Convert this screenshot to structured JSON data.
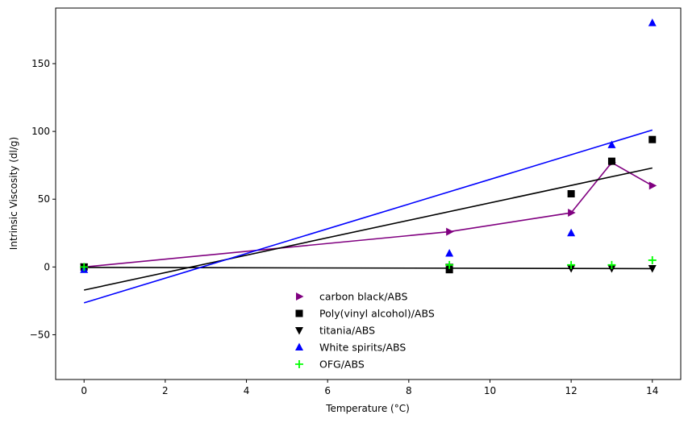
{
  "chart_data": {
    "type": "scatter",
    "title": "",
    "xlabel": "Temperature (°C)",
    "ylabel": "Intrinsic Viscosity (dl/g)",
    "xlim": [
      -0.7,
      14.7
    ],
    "ylim": [
      -83,
      191
    ],
    "xticks": [
      0,
      2,
      4,
      6,
      8,
      10,
      12,
      14
    ],
    "yticks": [
      -50,
      0,
      50,
      100,
      150
    ],
    "grid": false,
    "legend_position": "lower-center",
    "series": [
      {
        "name": "carbon black/ABS",
        "marker": "triangle-right",
        "color": "#800080",
        "points": [
          [
            0,
            0
          ],
          [
            9,
            26
          ],
          [
            12,
            40
          ],
          [
            13,
            77
          ],
          [
            14,
            60
          ]
        ],
        "line": {
          "type": "connect",
          "points": [
            [
              0,
              0
            ],
            [
              9,
              26
            ],
            [
              12,
              40
            ],
            [
              13,
              77
            ],
            [
              14,
              60
            ]
          ]
        }
      },
      {
        "name": "Poly(vinyl alcohol)/ABS",
        "marker": "square",
        "color": "#000000",
        "points": [
          [
            0,
            0
          ],
          [
            9,
            -2
          ],
          [
            12,
            54
          ],
          [
            13,
            78
          ],
          [
            14,
            94
          ]
        ],
        "line": {
          "type": "fit",
          "points": [
            [
              0,
              -17
            ],
            [
              14,
              73
            ]
          ]
        }
      },
      {
        "name": "titania/ABS",
        "marker": "triangle-down",
        "color": "#000000",
        "points": [
          [
            0,
            0
          ],
          [
            9,
            0
          ],
          [
            12,
            -1
          ],
          [
            13,
            -1
          ],
          [
            14,
            -1
          ]
        ],
        "line": {
          "type": "fit",
          "points": [
            [
              0,
              -0.3
            ],
            [
              14,
              -1.2
            ]
          ]
        }
      },
      {
        "name": "White spirits/ABS",
        "marker": "triangle-up",
        "color": "#0000ff",
        "points": [
          [
            0,
            -2
          ],
          [
            9,
            10
          ],
          [
            12,
            25
          ],
          [
            13,
            90
          ],
          [
            14,
            180
          ]
        ],
        "line": {
          "type": "fit",
          "points": [
            [
              0,
              -26.5
            ],
            [
              14,
              101
            ]
          ]
        }
      },
      {
        "name": "OFG/ABS",
        "marker": "plus",
        "color": "#00ff00",
        "points": [
          [
            0,
            0
          ],
          [
            9,
            1.5
          ],
          [
            12,
            1.5
          ],
          [
            13,
            1.5
          ],
          [
            14,
            5
          ]
        ]
      }
    ]
  }
}
